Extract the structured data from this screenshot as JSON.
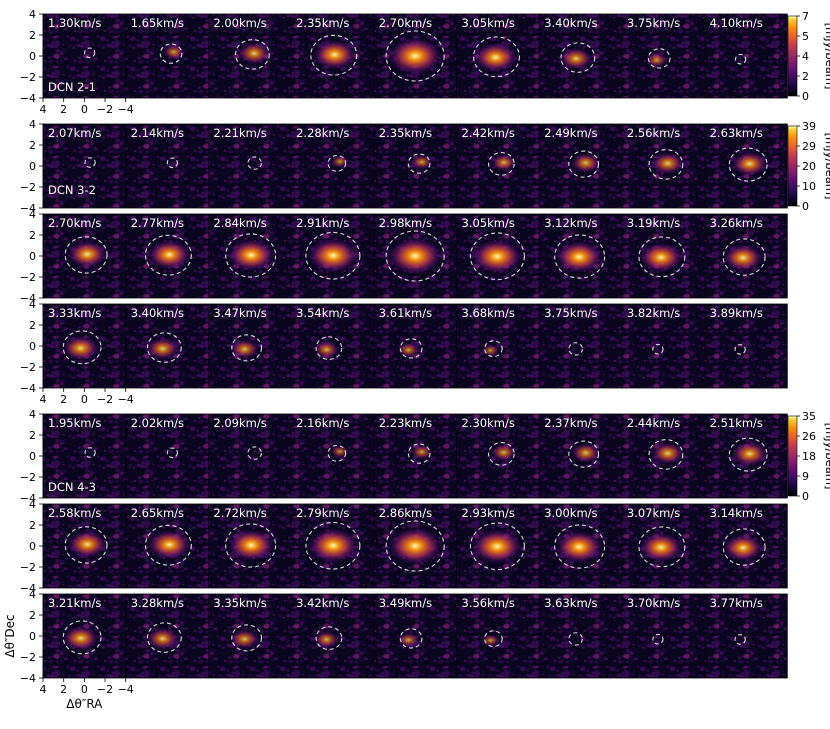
{
  "chart_data": {
    "type": "heatmap",
    "description_axis": {
      "xlabel": "Δθ″RA",
      "ylabel": "Δθ″Dec",
      "xlim": [
        4,
        -4
      ],
      "ylim": [
        -4,
        4
      ],
      "xticks": [
        "4",
        "2",
        "0",
        "−2",
        "−4"
      ],
      "yticks": [
        "4",
        "2",
        "0",
        "−2",
        "−4"
      ]
    },
    "colormap": "inferno",
    "mask_color": "#dddddd",
    "groups": [
      {
        "name": "DCN 2-1",
        "cbar_label": "[mJy/beam]",
        "cbar_range": [
          0,
          7
        ],
        "cbar_ticks": [
          "7",
          "5",
          "4",
          "2",
          "0"
        ],
        "rows": [
          [
            "1.30km/s",
            "1.65km/s",
            "2.00km/s",
            "2.35km/s",
            "2.70km/s",
            "3.05km/s",
            "3.40km/s",
            "3.75km/s",
            "4.10km/s"
          ]
        ]
      },
      {
        "name": "DCN 3-2",
        "cbar_label": "[mJy/beam]",
        "cbar_range": [
          0,
          39
        ],
        "cbar_ticks": [
          "39",
          "29",
          "20",
          "10",
          "0"
        ],
        "rows": [
          [
            "2.07km/s",
            "2.14km/s",
            "2.21km/s",
            "2.28km/s",
            "2.35km/s",
            "2.42km/s",
            "2.49km/s",
            "2.56km/s",
            "2.63km/s"
          ],
          [
            "2.70km/s",
            "2.77km/s",
            "2.84km/s",
            "2.91km/s",
            "2.98km/s",
            "3.05km/s",
            "3.12km/s",
            "3.19km/s",
            "3.26km/s"
          ],
          [
            "3.33km/s",
            "3.40km/s",
            "3.47km/s",
            "3.54km/s",
            "3.61km/s",
            "3.68km/s",
            "3.75km/s",
            "3.82km/s",
            "3.89km/s"
          ]
        ]
      },
      {
        "name": "DCN 4-3",
        "cbar_label": "[mJy/beam]",
        "cbar_range": [
          0,
          35
        ],
        "cbar_ticks": [
          "35",
          "26",
          "18",
          "9",
          "0"
        ],
        "rows": [
          [
            "1.95km/s",
            "2.02km/s",
            "2.09km/s",
            "2.16km/s",
            "2.23km/s",
            "2.30km/s",
            "2.37km/s",
            "2.44km/s",
            "2.51km/s"
          ],
          [
            "2.58km/s",
            "2.65km/s",
            "2.72km/s",
            "2.79km/s",
            "2.86km/s",
            "2.93km/s",
            "3.00km/s",
            "3.07km/s",
            "3.14km/s"
          ],
          [
            "3.21km/s",
            "3.28km/s",
            "3.35km/s",
            "3.42km/s",
            "3.49km/s",
            "3.56km/s",
            "3.63km/s",
            "3.70km/s",
            "3.77km/s"
          ]
        ]
      }
    ]
  }
}
